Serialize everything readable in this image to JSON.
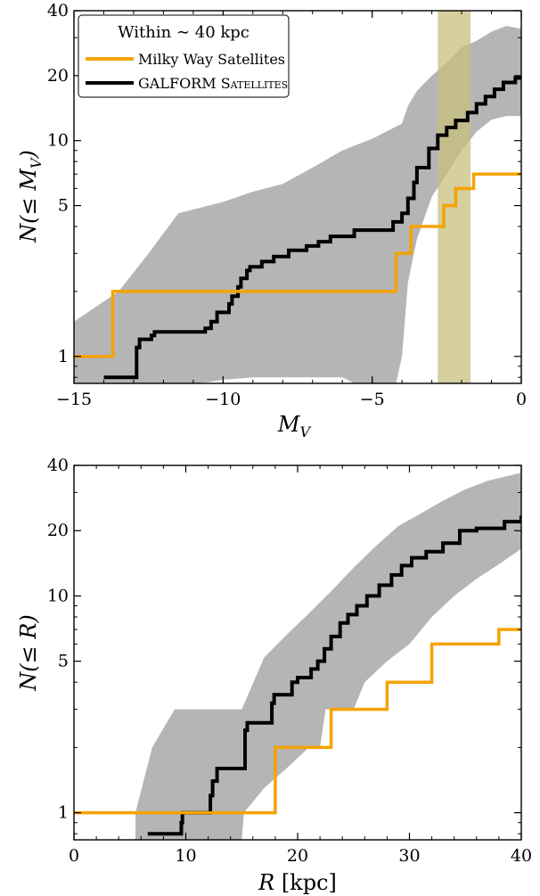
{
  "chart_data": [
    {
      "type": "line",
      "panel": "top",
      "xlabel": "M_V",
      "ylabel": "N(≤ M_V)",
      "xlim": [
        -15,
        0
      ],
      "ylim": [
        0.75,
        40
      ],
      "y_scale": "log",
      "x_ticks": [
        -15,
        -10,
        -5,
        0
      ],
      "x_tick_labels": [
        "−15",
        "−10",
        "−5",
        "0"
      ],
      "y_ticks": [
        1,
        5,
        10,
        20,
        40
      ],
      "y_tick_labels": [
        "1",
        "5",
        "10",
        "20",
        "40"
      ],
      "legend": {
        "position": "top-left",
        "title": "Within  ∼  40 kpc",
        "entries": [
          "Milky Way Satellites",
          "GALFORM Satellites"
        ]
      },
      "shaded_band": {
        "x_range": [
          -2.8,
          -1.7
        ],
        "color": "#c8bf7e"
      },
      "colors": {
        "milky_way": "#f5a300",
        "galform": "#000000",
        "scatter_band": "#b5b5b5"
      },
      "series": [
        {
          "name": "Milky Way Satellites",
          "x": [
            -15,
            -13.7,
            -13.7,
            -4.2,
            -4.2,
            -3.7,
            -3.7,
            -2.6,
            -2.6,
            -2.2,
            -2.2,
            -1.6,
            -1.6,
            0
          ],
          "y": [
            1,
            1,
            2,
            2,
            3,
            3,
            4,
            4,
            5,
            5,
            6,
            6,
            7,
            7
          ]
        },
        {
          "name": "GALFORM Satellites",
          "x": [
            -14,
            -13.9,
            -12.9,
            -12.8,
            -12.4,
            -12.3,
            -10.6,
            -10.4,
            -10.2,
            -9.8,
            -9.7,
            -9.5,
            -9.4,
            -9.2,
            -9.1,
            -8.7,
            -8.3,
            -7.8,
            -7.2,
            -6.8,
            -6.4,
            -5.6,
            -4.3,
            -4.0,
            -3.8,
            -3.6,
            -3.5,
            -3.1,
            -2.8,
            -2.5,
            -2.2,
            -1.8,
            -1.5,
            -1.2,
            -0.9,
            -0.6,
            -0.2,
            0
          ],
          "y": [
            0.8,
            0.8,
            1.1,
            1.2,
            1.25,
            1.3,
            1.35,
            1.45,
            1.6,
            1.75,
            1.9,
            2.1,
            2.3,
            2.5,
            2.6,
            2.75,
            2.9,
            3.1,
            3.25,
            3.4,
            3.6,
            3.85,
            4.2,
            4.6,
            5.4,
            6.4,
            7.5,
            9.2,
            10.6,
            11.5,
            12.4,
            13.5,
            14.8,
            16.0,
            17.3,
            18.6,
            19.5,
            19.5
          ]
        },
        {
          "name": "GALFORM Satellites scatter (upper)",
          "x": [
            -15,
            -13.5,
            -12.5,
            -11.5,
            -10,
            -9,
            -8,
            -7,
            -6,
            -5,
            -4,
            -3.8,
            -3.5,
            -3,
            -2.5,
            -2,
            -1.5,
            -1,
            -0.5,
            0
          ],
          "y": [
            1.45,
            2.0,
            3.0,
            4.6,
            5.2,
            5.8,
            6.3,
            7.5,
            9.0,
            10.2,
            12.0,
            14.5,
            17.0,
            20.0,
            23.0,
            27.0,
            29.0,
            32.0,
            34.0,
            33.0
          ]
        },
        {
          "name": "GALFORM Satellites scatter (lower)",
          "x": [
            -15,
            -11,
            -10.5,
            -10,
            -9,
            -8,
            -7,
            -6,
            -5.6,
            -4.2,
            -4,
            -3.8,
            -3.5,
            -3,
            -2.5,
            -2,
            -1.5,
            -1,
            -0.5,
            0
          ],
          "y": [
            0.75,
            0.75,
            0.76,
            0.78,
            0.8,
            0.8,
            0.8,
            0.8,
            0.75,
            0.75,
            1.0,
            2.2,
            3.5,
            5.5,
            7.0,
            9.0,
            11.0,
            12.5,
            13.0,
            13.0
          ]
        }
      ]
    },
    {
      "type": "line",
      "panel": "bottom",
      "xlabel": "R [kpc]",
      "ylabel": "N(≤ R)",
      "xlim": [
        0,
        40
      ],
      "ylim": [
        0.75,
        40
      ],
      "y_scale": "log",
      "x_ticks": [
        0,
        10,
        20,
        30,
        40
      ],
      "x_tick_labels": [
        "0",
        "10",
        "20",
        "30",
        "40"
      ],
      "y_ticks": [
        1,
        5,
        10,
        20,
        40
      ],
      "y_tick_labels": [
        "1",
        "5",
        "10",
        "20",
        "40"
      ],
      "colors": {
        "milky_way": "#f5a300",
        "galform": "#000000",
        "scatter_band": "#b5b5b5"
      },
      "series": [
        {
          "name": "Milky Way Satellites",
          "x": [
            0,
            18,
            18,
            23,
            23,
            28,
            28,
            32,
            32,
            38,
            38,
            40
          ],
          "y": [
            1,
            1,
            2,
            2,
            3,
            3,
            4,
            4,
            6,
            6,
            7,
            7
          ]
        },
        {
          "name": "GALFORM Satellites",
          "x": [
            6.6,
            6.7,
            9.6,
            9.7,
            12.2,
            12.4,
            12.8,
            13.0,
            15.3,
            15.5,
            17.7,
            17.9,
            19.5,
            20.0,
            21.2,
            21.8,
            22.4,
            23.0,
            23.8,
            24.5,
            25.3,
            26.2,
            27.3,
            28.4,
            29.3,
            30.2,
            31.5,
            33.0,
            34.5,
            36.0,
            37.5,
            38.5,
            40
          ],
          "y": [
            0.8,
            0.8,
            0.9,
            1.0,
            1.2,
            1.4,
            1.6,
            1.6,
            2.4,
            2.6,
            3.2,
            3.5,
            4.0,
            4.2,
            4.6,
            5.0,
            5.7,
            6.5,
            7.5,
            8.2,
            9.0,
            10.0,
            11.2,
            12.5,
            13.8,
            15.0,
            16.0,
            17.5,
            20.0,
            20.5,
            20.5,
            22.0,
            23.5
          ]
        },
        {
          "name": "GALFORM Satellites scatter (upper)",
          "x": [
            5.5,
            7,
            9,
            15,
            17,
            19,
            21,
            23,
            25,
            27,
            29,
            31,
            33,
            35,
            37,
            40
          ],
          "y": [
            1.0,
            2.0,
            3.0,
            3.0,
            5.2,
            6.6,
            8.3,
            10.5,
            13.5,
            17.0,
            21.0,
            24.0,
            27.5,
            31.0,
            34.0,
            37.0
          ]
        },
        {
          "name": "GALFORM Satellites scatter (lower)",
          "x": [
            5.5,
            15,
            15.2,
            17,
            19,
            21,
            22,
            22.5,
            25,
            26,
            28,
            30,
            32,
            34,
            36,
            38,
            40
          ],
          "y": [
            0.75,
            0.75,
            1.0,
            1.3,
            1.6,
            2.0,
            2.0,
            3.0,
            3.0,
            4.0,
            5.0,
            6.0,
            8.0,
            10.0,
            12.0,
            14.0,
            16.5
          ]
        }
      ]
    }
  ]
}
